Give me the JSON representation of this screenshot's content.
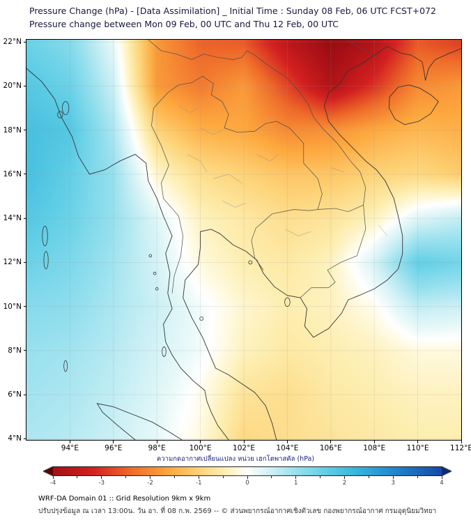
{
  "header": {
    "title_line1": "Pressure Change (hPa) - [Data Assimilation] _ Initial Time : Sunday 08 Feb, 06 UTC FCST+072",
    "title_line2": "Pressure change between Mon 09 Feb, 00 UTC and Thu 12 Feb, 00 UTC"
  },
  "chart_data": {
    "type": "heatmap",
    "title": "Pressure Change (hPa) - [Data Assimilation]",
    "subtitle": "Pressure change between Mon 09 Feb, 00 UTC and Thu 12 Feb, 00 UTC",
    "x_axis": {
      "ticks": [
        94,
        96,
        98,
        100,
        102,
        104,
        106,
        108,
        110,
        112
      ],
      "suffix": "°E",
      "range": [
        92,
        112
      ]
    },
    "y_axis": {
      "ticks": [
        22,
        20,
        18,
        16,
        14,
        12,
        10,
        8,
        6,
        4
      ],
      "suffix": "°N",
      "range": [
        3.95,
        22.1
      ]
    },
    "grid": {
      "lons": [
        92,
        94,
        96,
        98,
        100,
        102,
        104,
        106,
        108,
        110,
        112
      ],
      "lats": [
        22,
        20,
        18,
        16,
        14,
        12,
        10,
        8,
        6,
        4
      ],
      "values_hpa": [
        [
          1.5,
          1.2,
          0.2,
          -1.8,
          -2.5,
          -2.6,
          -3.6,
          -4.2,
          -3.8,
          -2.6,
          -2.9
        ],
        [
          1.8,
          1.5,
          0.5,
          -1.8,
          -2.2,
          -1.8,
          -2.8,
          -3.8,
          -3.0,
          -2.0,
          -1.8
        ],
        [
          2.0,
          1.8,
          0.8,
          -1.0,
          -1.5,
          -1.6,
          -2.0,
          -1.9,
          -1.6,
          -1.4,
          -1.5
        ],
        [
          2.0,
          1.6,
          1.0,
          -0.3,
          -0.8,
          -1.0,
          -1.2,
          -1.2,
          -1.0,
          -0.9,
          -1.1
        ],
        [
          1.8,
          1.5,
          1.0,
          0.3,
          -0.4,
          -0.6,
          -0.8,
          -0.7,
          -0.4,
          0.3,
          0.6
        ],
        [
          1.5,
          1.3,
          0.9,
          0.4,
          -0.2,
          -0.5,
          -0.6,
          -0.4,
          0.4,
          1.6,
          1.4
        ],
        [
          1.2,
          1.1,
          0.8,
          0.5,
          0.1,
          -0.3,
          -0.5,
          -0.4,
          -0.1,
          0.6,
          0.5
        ],
        [
          1.0,
          0.9,
          0.7,
          0.4,
          0.1,
          -0.4,
          -0.6,
          -0.5,
          -0.4,
          -0.2,
          -0.2
        ],
        [
          0.9,
          0.8,
          0.6,
          0.3,
          -0.1,
          -0.7,
          -0.8,
          -0.6,
          -0.5,
          -0.4,
          -0.4
        ],
        [
          0.8,
          0.7,
          0.5,
          0.2,
          -0.2,
          -0.9,
          -0.8,
          -0.7,
          -0.6,
          -0.5,
          -0.5
        ]
      ]
    },
    "colormap": {
      "stops": [
        [
          -5.0,
          "#5c0000"
        ],
        [
          -4.0,
          "#a50f15"
        ],
        [
          -3.2,
          "#d32020"
        ],
        [
          -2.4,
          "#ef6c2a"
        ],
        [
          -1.6,
          "#fda93f"
        ],
        [
          -1.0,
          "#fdd378"
        ],
        [
          -0.5,
          "#fdeeb0"
        ],
        [
          -0.15,
          "#fffbe6"
        ],
        [
          0.0,
          "#ffffff"
        ],
        [
          0.15,
          "#edfaf9"
        ],
        [
          0.5,
          "#ccf0f5"
        ],
        [
          1.0,
          "#97e0ee"
        ],
        [
          1.6,
          "#62cfe6"
        ],
        [
          2.2,
          "#3ab8dc"
        ],
        [
          3.0,
          "#2188cf"
        ],
        [
          4.0,
          "#1648a8"
        ],
        [
          5.0,
          "#0d2b7a"
        ]
      ]
    },
    "colorbar": {
      "label": "ความกดอากาศเปลี่ยนแปลง หน่วย เฮกโตพาสคัล (hPa)",
      "ticks": [
        -4,
        -3,
        -2,
        -1,
        0,
        1,
        2,
        3,
        4
      ],
      "range": [
        -4,
        4
      ],
      "minor_step": 0.5
    },
    "grid_lines": true,
    "legend_position": "bottom"
  },
  "footer": {
    "line1": "WRF-DA Domain 01 :: Grid Resolution 9km x 9km",
    "line2": "ปรับปรุงข้อมูล ณ เวลา 13:00น. วัน อา. ที่ 08 ก.พ. 2569 -- © ส่วนพยากรณ์อากาศเชิงตัวเลข กองพยากรณ์อากาศ กรมอุตุนิยมวิทยา"
  }
}
